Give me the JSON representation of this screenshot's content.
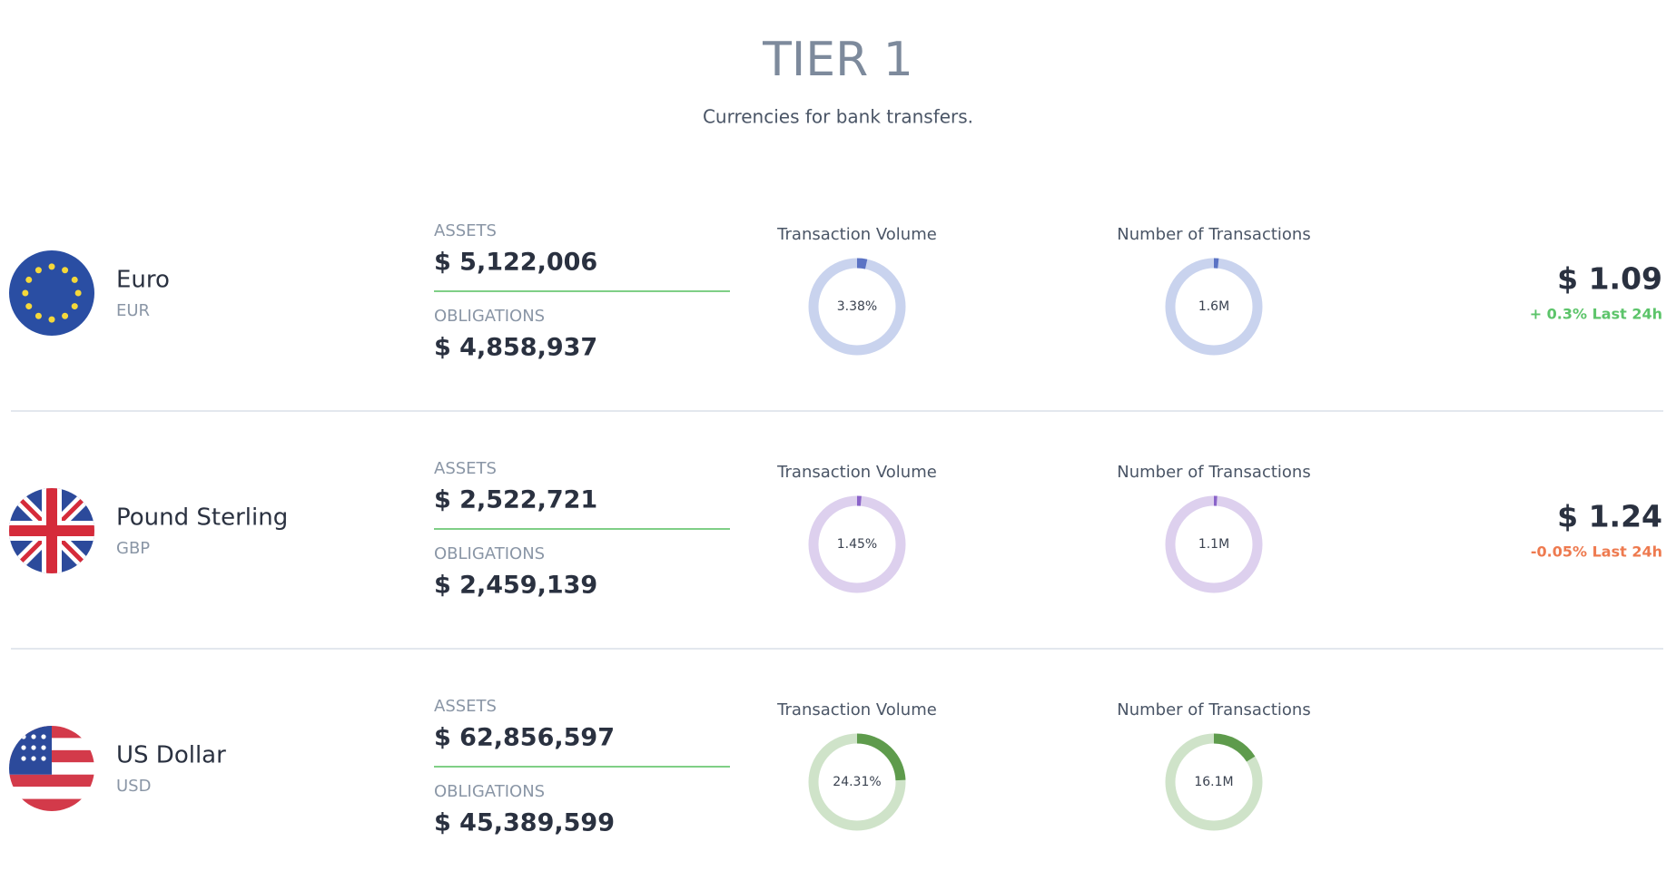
{
  "header": {
    "title": "TIER 1",
    "subtitle": "Currencies for bank transfers."
  },
  "transactions_ring_max": 100000000,
  "rows": [
    {
      "name": "Euro",
      "code": "EUR",
      "assets_label": "ASSETS",
      "assets": "$ 5,122,006",
      "obligations_label": "OBLIGATIONS",
      "obligations": "$ 4,858,937",
      "volume_label": "Transaction Volume",
      "volume": {
        "value": 3.38,
        "label": "3.38%"
      },
      "transactions_label": "Number of Transactions",
      "transactions": {
        "value": 1600000,
        "label": "1.6M"
      },
      "price": "$ 1.09",
      "change": "+ 0.3% Last 24h",
      "change_color": "#5cc46a",
      "color": "#5b73c4",
      "track_color": "#c9d3ee"
    },
    {
      "name": "Pound Sterling",
      "code": "GBP",
      "assets_label": "ASSETS",
      "assets": "$ 2,522,721",
      "obligations_label": "OBLIGATIONS",
      "obligations": "$ 2,459,139",
      "volume_label": "Transaction Volume",
      "volume": {
        "value": 1.45,
        "label": "1.45%"
      },
      "transactions_label": "Number of Transactions",
      "transactions": {
        "value": 1100000,
        "label": "1.1M"
      },
      "price": "$ 1.24",
      "change": "-0.05% Last 24h",
      "change_color": "#ee7a4f",
      "color": "#8a63c9",
      "track_color": "#ddd0ee"
    },
    {
      "name": "US Dollar",
      "code": "USD",
      "assets_label": "ASSETS",
      "assets": "$ 62,856,597",
      "obligations_label": "OBLIGATIONS",
      "obligations": "$ 45,389,599",
      "volume_label": "Transaction Volume",
      "volume": {
        "value": 24.31,
        "label": "24.31%"
      },
      "transactions_label": "Number of Transactions",
      "transactions": {
        "value": 16100000,
        "label": "16.1M"
      },
      "color": "#5e9b4c",
      "track_color": "#cfe3c9"
    }
  ]
}
